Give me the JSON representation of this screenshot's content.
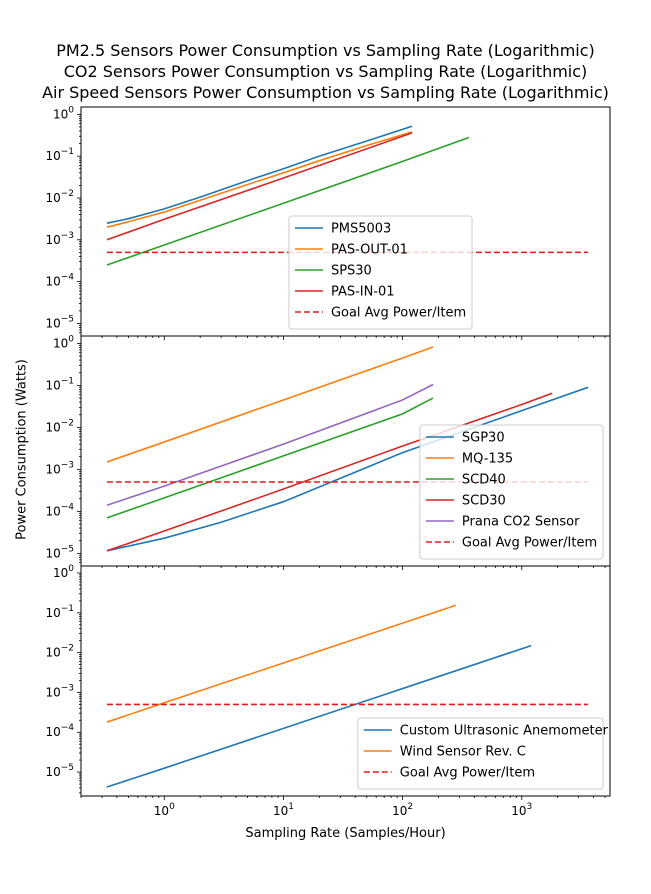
{
  "titles": [
    "PM2.5 Sensors Power Consumption vs Sampling Rate (Logarithmic)",
    "CO2 Sensors Power Consumption vs Sampling Rate (Logarithmic)",
    "Air Speed Sensors Power Consumption vs Sampling Rate (Logarithmic)"
  ],
  "xlabel": "Sampling Rate (Samples/Hour)",
  "ylabel": "Power Consumption (Watts)",
  "colors": {
    "blue": "#1f77b4",
    "orange": "#ff7f0e",
    "green": "#2ca02c",
    "red": "#d62728",
    "purple": "#9467bd",
    "goal": "#e41a1c"
  },
  "chart_data": [
    {
      "type": "line",
      "title": "PM2.5 Sensors Power Consumption vs Sampling Rate (Logarithmic)",
      "xscale": "log",
      "yscale": "log",
      "xlim": [
        0.2,
        5500
      ],
      "ylim": [
        5e-06,
        1.5
      ],
      "grid": false,
      "legend_position": "lower center",
      "xticks": [],
      "yticks": [
        "10^-5",
        "10^-4",
        "10^-3",
        "10^-2",
        "10^-1",
        "10^0"
      ],
      "series": [
        {
          "name": "PMS5003",
          "color": "blue",
          "style": "solid",
          "x": [
            0.33,
            0.5,
            1,
            2,
            5,
            10,
            20,
            50,
            120
          ],
          "y": [
            0.0025,
            0.0032,
            0.0055,
            0.0105,
            0.026,
            0.05,
            0.1,
            0.23,
            0.52
          ]
        },
        {
          "name": "PAS-OUT-01",
          "color": "orange",
          "style": "solid",
          "x": [
            0.33,
            0.5,
            1,
            2,
            5,
            10,
            20,
            50,
            120
          ],
          "y": [
            0.002,
            0.0027,
            0.0046,
            0.0088,
            0.021,
            0.04,
            0.078,
            0.18,
            0.38
          ]
        },
        {
          "name": "SPS30",
          "color": "green",
          "style": "solid",
          "x": [
            0.33,
            1,
            10,
            100,
            360
          ],
          "y": [
            0.00025,
            0.00075,
            0.0075,
            0.075,
            0.28
          ]
        },
        {
          "name": "PAS-IN-01",
          "color": "red",
          "style": "solid",
          "x": [
            0.33,
            1,
            10,
            120
          ],
          "y": [
            0.001,
            0.0031,
            0.03,
            0.36
          ]
        },
        {
          "name": "Goal Avg Power/Item",
          "color": "goal",
          "style": "dashed",
          "x": [
            0.33,
            3600
          ],
          "y": [
            0.0005,
            0.0005
          ]
        }
      ]
    },
    {
      "type": "line",
      "title": "CO2 Sensors Power Consumption vs Sampling Rate (Logarithmic)",
      "xscale": "log",
      "yscale": "log",
      "xlim": [
        0.2,
        5500
      ],
      "ylim": [
        5e-06,
        1.5
      ],
      "grid": false,
      "legend_position": "lower right",
      "xticks": [],
      "yticks": [
        "10^-5",
        "10^-4",
        "10^-3",
        "10^-2",
        "10^-1",
        "10^0"
      ],
      "series": [
        {
          "name": "SGP30",
          "color": "blue",
          "style": "solid",
          "x": [
            0.33,
            1,
            3,
            10,
            100,
            1000,
            3600
          ],
          "y": [
            1.15e-05,
            2.3e-05,
            5.5e-05,
            0.00017,
            0.0025,
            0.025,
            0.09
          ]
        },
        {
          "name": "MQ-135",
          "color": "orange",
          "style": "solid",
          "x": [
            0.33,
            1,
            10,
            100,
            180
          ],
          "y": [
            0.0015,
            0.0045,
            0.045,
            0.45,
            0.82
          ]
        },
        {
          "name": "SCD40",
          "color": "green",
          "style": "solid",
          "x": [
            0.33,
            1,
            10,
            100,
            180
          ],
          "y": [
            7e-05,
            0.00021,
            0.0021,
            0.021,
            0.05
          ]
        },
        {
          "name": "SCD30",
          "color": "red",
          "style": "solid",
          "x": [
            0.33,
            1,
            10,
            100,
            1000,
            1800
          ],
          "y": [
            1.15e-05,
            3.4e-05,
            0.00034,
            0.0036,
            0.035,
            0.065
          ]
        },
        {
          "name": "Prana CO2 Sensor",
          "color": "purple",
          "style": "solid",
          "x": [
            0.33,
            1,
            10,
            100,
            180
          ],
          "y": [
            0.00014,
            0.0004,
            0.004,
            0.045,
            0.105
          ]
        },
        {
          "name": "Goal Avg Power/Item",
          "color": "goal",
          "style": "dashed",
          "x": [
            0.33,
            3600
          ],
          "y": [
            0.0005,
            0.0005
          ]
        }
      ]
    },
    {
      "type": "line",
      "title": "Air Speed Sensors Power Consumption vs Sampling Rate (Logarithmic)",
      "xscale": "log",
      "yscale": "log",
      "xlim": [
        0.2,
        5500
      ],
      "ylim": [
        2.5e-06,
        1.5
      ],
      "grid": false,
      "legend_position": "lower right",
      "xticks": [
        "10^0",
        "10^1",
        "10^2",
        "10^3"
      ],
      "yticks": [
        "10^-5",
        "10^-4",
        "10^-3",
        "10^-2",
        "10^-1",
        "10^0"
      ],
      "series": [
        {
          "name": "Custom Ultrasonic Anemometer",
          "color": "blue",
          "style": "solid",
          "x": [
            0.33,
            1,
            10,
            100,
            1200
          ],
          "y": [
            4.2e-06,
            1.25e-05,
            0.000125,
            0.00125,
            0.015
          ]
        },
        {
          "name": "Wind Sensor Rev. C",
          "color": "orange",
          "style": "solid",
          "x": [
            0.33,
            1,
            10,
            100,
            280
          ],
          "y": [
            0.00018,
            0.00055,
            0.0055,
            0.055,
            0.155
          ]
        },
        {
          "name": "Goal Avg Power/Item",
          "color": "goal",
          "style": "dashed",
          "x": [
            0.33,
            3600
          ],
          "y": [
            0.0005,
            0.0005
          ]
        }
      ]
    }
  ]
}
